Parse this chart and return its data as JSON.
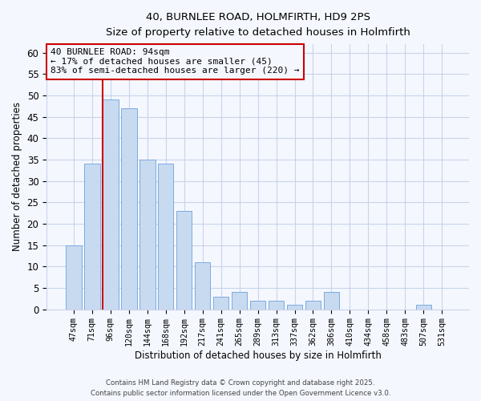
{
  "title": "40, BURNLEE ROAD, HOLMFIRTH, HD9 2PS",
  "subtitle": "Size of property relative to detached houses in Holmfirth",
  "xlabel": "Distribution of detached houses by size in Holmfirth",
  "ylabel": "Number of detached properties",
  "bar_labels": [
    "47sqm",
    "71sqm",
    "96sqm",
    "120sqm",
    "144sqm",
    "168sqm",
    "192sqm",
    "217sqm",
    "241sqm",
    "265sqm",
    "289sqm",
    "313sqm",
    "337sqm",
    "362sqm",
    "386sqm",
    "410sqm",
    "434sqm",
    "458sqm",
    "483sqm",
    "507sqm",
    "531sqm"
  ],
  "bar_values": [
    15,
    34,
    49,
    47,
    35,
    34,
    23,
    11,
    3,
    4,
    2,
    2,
    1,
    2,
    4,
    0,
    0,
    0,
    0,
    1,
    0
  ],
  "bar_color": "#c8daf0",
  "bar_edge_color": "#7aabe0",
  "vline_color": "#cc0000",
  "ylim": [
    0,
    62
  ],
  "yticks": [
    0,
    5,
    10,
    15,
    20,
    25,
    30,
    35,
    40,
    45,
    50,
    55,
    60
  ],
  "annotation_title": "40 BURNLEE ROAD: 94sqm",
  "annotation_line1": "← 17% of detached houses are smaller (45)",
  "annotation_line2": "83% of semi-detached houses are larger (220) →",
  "annotation_box_color": "#cc0000",
  "footer_line1": "Contains HM Land Registry data © Crown copyright and database right 2025.",
  "footer_line2": "Contains public sector information licensed under the Open Government Licence v3.0.",
  "background_color": "#f5f7ff",
  "grid_color": "#c8d4ea"
}
